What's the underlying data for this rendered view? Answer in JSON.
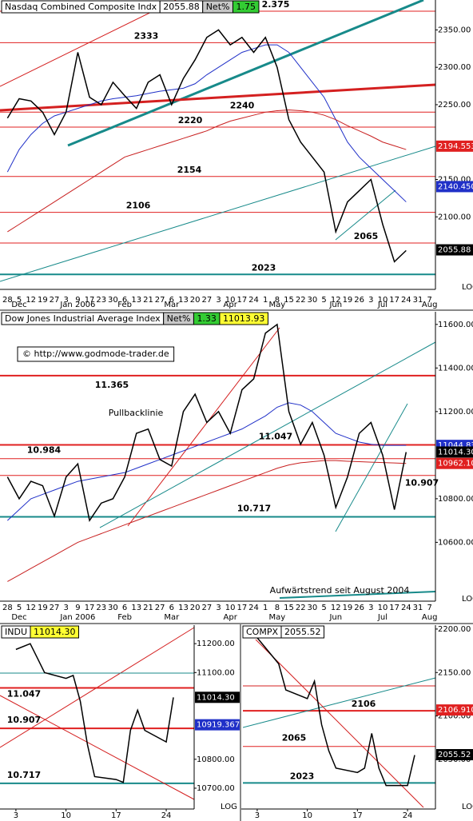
{
  "chart_data": [
    {
      "type": "line",
      "header": [
        {
          "text": "Nasdaq Combined Composite Indx",
          "color": "#ffffff"
        },
        {
          "text": "2055.88",
          "color": "#ffffff"
        },
        {
          "text": "Net%",
          "color": "#c8c8c8"
        },
        {
          "text": "1.75",
          "color": "#33cc33"
        }
      ],
      "categories": [
        "28",
        "5",
        "12",
        "19",
        "27",
        "3",
        "9",
        "17",
        "23",
        "30",
        "6",
        "13",
        "21",
        "27",
        "6",
        "13",
        "20",
        "27",
        "3",
        "10",
        "17",
        "24",
        "1",
        "8",
        "15",
        "22",
        "30",
        "5",
        "12",
        "19",
        "26",
        "3",
        "10",
        "17",
        "24",
        "31",
        "7"
      ],
      "months": [
        null,
        "Dec",
        null,
        null,
        null,
        null,
        "Jan 2006",
        null,
        null,
        null,
        "Feb",
        null,
        null,
        null,
        "Mar",
        null,
        null,
        null,
        null,
        "Apr",
        null,
        null,
        null,
        "May",
        null,
        null,
        null,
        null,
        "Jun",
        null,
        null,
        null,
        "Jul",
        null,
        null,
        null,
        "Aug"
      ],
      "values": [
        2232,
        2258,
        2255,
        2240,
        2210,
        2240,
        2320,
        2260,
        2250,
        2280,
        2262,
        2245,
        2280,
        2290,
        2250,
        2285,
        2310,
        2340,
        2350,
        2330,
        2340,
        2320,
        2340,
        2300,
        2230,
        2200,
        2180,
        2160,
        2080,
        2120,
        2135,
        2150,
        2090,
        2040,
        2055,
        null,
        null
      ],
      "color": "#000000",
      "moving_averages": [
        {
          "color": "#2030c8",
          "values": [
            2160,
            2190,
            2210,
            2225,
            2235,
            2240,
            2245,
            2250,
            2255,
            2258,
            2260,
            2262,
            2265,
            2268,
            2270,
            2272,
            2278,
            2290,
            2300,
            2310,
            2320,
            2325,
            2330,
            2330,
            2320,
            2300,
            2280,
            2260,
            2230,
            2200,
            2180,
            2165,
            2150,
            2135,
            2120,
            null,
            null
          ]
        },
        {
          "color": "#c82020",
          "values": [
            2080,
            2090,
            2100,
            2110,
            2120,
            2130,
            2140,
            2150,
            2160,
            2170,
            2180,
            2185,
            2190,
            2195,
            2200,
            2205,
            2210,
            2215,
            2222,
            2228,
            2232,
            2236,
            2240,
            2242,
            2243,
            2242,
            2240,
            2236,
            2230,
            2222,
            2215,
            2208,
            2200,
            2195,
            2190,
            null,
            null
          ]
        }
      ],
      "ylim": [
        2003,
        2390
      ],
      "yticks": [
        {
          "value": 2100,
          "label": "2100.00"
        },
        {
          "value": 2150,
          "label": "2150.00"
        },
        {
          "value": 2250,
          "label": "2250.00"
        },
        {
          "value": 2300,
          "label": "2300.00"
        },
        {
          "value": 2350,
          "label": "2350.00"
        }
      ],
      "levels": [
        {
          "value": 2375,
          "label": "2.375",
          "color": "#e02020",
          "weight": 1
        },
        {
          "value": 2333,
          "label": "2333",
          "color": "#e02020",
          "weight": 1
        },
        {
          "value": 2240,
          "label": "2240",
          "color": "#e02020",
          "weight": 1
        },
        {
          "value": 2220,
          "label": "2220",
          "color": "#e02020",
          "weight": 1
        },
        {
          "value": 2154,
          "label": "2154",
          "color": "#e02020",
          "weight": 1
        },
        {
          "value": 2106,
          "label": "2106",
          "color": "#e02020",
          "weight": 1
        },
        {
          "value": 2065,
          "label": "2065",
          "color": "#e02020",
          "weight": 1
        },
        {
          "value": 2023,
          "label": "2023",
          "color": "#178a8a",
          "weight": 2
        }
      ],
      "markers": [
        {
          "value": 2194.553,
          "color": "#e02020"
        },
        {
          "value": 2140.45,
          "label": "2140.450",
          "color": "#2030c8"
        },
        {
          "value": 2055.88,
          "color": "#000000"
        }
      ],
      "axis_note": "LOG"
    },
    {
      "type": "line",
      "header": [
        {
          "text": "Dow Jones Industrial Average Index",
          "color": "#ffffff"
        },
        {
          "text": "Net%",
          "color": "#c8c8c8"
        },
        {
          "text": "1.33",
          "color": "#33cc33"
        },
        {
          "text": "11013.93",
          "color": "#ffff33"
        }
      ],
      "categories": [
        "28",
        "5",
        "12",
        "19",
        "27",
        "3",
        "9",
        "17",
        "23",
        "30",
        "6",
        "13",
        "21",
        "27",
        "6",
        "13",
        "20",
        "27",
        "3",
        "10",
        "17",
        "24",
        "1",
        "8",
        "15",
        "22",
        "30",
        "5",
        "12",
        "19",
        "26",
        "3",
        "10",
        "17",
        "24",
        "31",
        "7"
      ],
      "months": [
        null,
        "Dec",
        null,
        null,
        null,
        null,
        "Jan 2006",
        null,
        null,
        null,
        "Feb",
        null,
        null,
        null,
        "Mar",
        null,
        null,
        null,
        null,
        "Apr",
        null,
        null,
        null,
        "May",
        null,
        null,
        null,
        null,
        "Jun",
        null,
        null,
        null,
        "Jul",
        null,
        null,
        null,
        "Aug"
      ],
      "values": [
        10900,
        10800,
        10880,
        10860,
        10720,
        10900,
        10960,
        10700,
        10780,
        10800,
        10900,
        11100,
        11120,
        10980,
        10950,
        11200,
        11280,
        11150,
        11200,
        11100,
        11300,
        11350,
        11560,
        11600,
        11200,
        11050,
        11150,
        11000,
        10760,
        10900,
        11100,
        11150,
        11000,
        10750,
        11014,
        null,
        null
      ],
      "color": "#000000",
      "moving_averages": [
        {
          "color": "#2030c8",
          "values": [
            10700,
            10750,
            10800,
            10820,
            10840,
            10860,
            10880,
            10890,
            10900,
            10910,
            10920,
            10940,
            10960,
            10980,
            11000,
            11020,
            11040,
            11060,
            11080,
            11100,
            11120,
            11150,
            11180,
            11220,
            11240,
            11230,
            11200,
            11150,
            11100,
            11080,
            11060,
            11050,
            11045,
            11045,
            11045,
            null,
            null
          ]
        },
        {
          "color": "#c82020",
          "values": [
            10420,
            10450,
            10480,
            10510,
            10540,
            10570,
            10600,
            10620,
            10640,
            10660,
            10680,
            10700,
            10720,
            10740,
            10760,
            10780,
            10800,
            10820,
            10840,
            10860,
            10880,
            10900,
            10920,
            10940,
            10955,
            10965,
            10970,
            10975,
            10975,
            10972,
            10970,
            10968,
            10966,
            10964,
            10962,
            null,
            null
          ]
        }
      ],
      "ylim": [
        10330,
        11658
      ],
      "yticks": [
        {
          "value": 10600,
          "label": "10600.00"
        },
        {
          "value": 10800,
          "label": "10800.00"
        },
        {
          "value": 11200,
          "label": "11200.00"
        },
        {
          "value": 11400,
          "label": "11400.00"
        },
        {
          "value": 11600,
          "label": "11600.00"
        }
      ],
      "levels": [
        {
          "value": 11365,
          "label": "11.365",
          "color": "#e02020",
          "weight": 2
        },
        {
          "value": 11047,
          "label": "11.047",
          "color": "#e02020",
          "weight": 2
        },
        {
          "value": 10984,
          "label": "10.984",
          "color": "#e02020",
          "weight": 1
        },
        {
          "value": 10907,
          "label": "10.907",
          "color": "#e02020",
          "weight": 1
        },
        {
          "value": 10717,
          "label": "10.717",
          "color": "#178a8a",
          "weight": 2
        }
      ],
      "markers": [
        {
          "value": 11044.83,
          "color": "#2030c8"
        },
        {
          "value": 11014.3,
          "label": "11014.30",
          "color": "#000000"
        },
        {
          "value": 10962.1,
          "label": "10962.10",
          "color": "#e02020"
        }
      ],
      "annotations": [
        "© http://www.godmode-trader.de",
        "Pullbacklinie",
        "Aufwärtstrend seit August 2004"
      ],
      "axis_note": "LOG"
    },
    {
      "type": "line",
      "header": [
        {
          "text": "INDU",
          "color": "#ffffff"
        },
        {
          "text": "11014.30",
          "color": "#ffff33"
        }
      ],
      "x": [
        3,
        5,
        6,
        7,
        10,
        11,
        12,
        13,
        14,
        17,
        18,
        19,
        20,
        21,
        24,
        25
      ],
      "values": [
        11180,
        11200,
        11150,
        11100,
        11080,
        11090,
        11000,
        10850,
        10740,
        10730,
        10720,
        10900,
        10970,
        10900,
        10860,
        11014
      ],
      "color": "#000000",
      "xlim": [
        1,
        27.9
      ],
      "xticks": [
        3,
        10,
        17,
        24
      ],
      "ylim": [
        10628,
        11264
      ],
      "yticks": [
        {
          "value": 10700,
          "label": "10700.00"
        },
        {
          "value": 10800,
          "label": "10800.00"
        },
        {
          "value": 11100,
          "label": "11100.00"
        },
        {
          "value": 11200,
          "label": "11200.00"
        }
      ],
      "levels": [
        {
          "value": 11047,
          "label": "11.047",
          "color": "#e02020",
          "weight": 2
        },
        {
          "value": 10907,
          "label": "10.907",
          "color": "#e02020",
          "weight": 2
        },
        {
          "value": 10717,
          "label": "10.717",
          "color": "#178a8a",
          "weight": 2
        }
      ],
      "markers": [
        {
          "value": 11014.3,
          "label": "11014.30",
          "color": "#000000"
        },
        {
          "value": 10919.367,
          "color": "#2030c8"
        }
      ],
      "axis_note": "LOG"
    },
    {
      "type": "line",
      "header": [
        {
          "text": "COMPX",
          "color": "#ffffff"
        },
        {
          "text": "2055.52",
          "color": "#ffffff"
        }
      ],
      "x": [
        3,
        5,
        6,
        7,
        10,
        11,
        12,
        13,
        14,
        17,
        18,
        19,
        20,
        21,
        24,
        25
      ],
      "values": [
        2190,
        2170,
        2160,
        2130,
        2120,
        2140,
        2090,
        2060,
        2040,
        2035,
        2040,
        2080,
        2040,
        2020,
        2020,
        2055
      ],
      "color": "#000000",
      "xlim": [
        1,
        27.9
      ],
      "xticks": [
        3,
        10,
        17,
        24
      ],
      "ylim": [
        1993,
        2204.5
      ],
      "yticks": [
        {
          "value": 2050,
          "label": "2050.00"
        },
        {
          "value": 2100,
          "label": "2100.00"
        },
        {
          "value": 2150,
          "label": "2150.00"
        },
        {
          "value": 2200,
          "label": "2200.00"
        }
      ],
      "levels": [
        {
          "value": 2106,
          "label": "2106",
          "color": "#e02020",
          "weight": 2
        },
        {
          "value": 2065,
          "label": "2065",
          "color": "#e02020",
          "weight": 1
        },
        {
          "value": 2023,
          "label": "2023",
          "color": "#178a8a",
          "weight": 2
        }
      ],
      "markers": [
        {
          "value": 2106.91,
          "label": "2106.910",
          "color": "#e02020"
        },
        {
          "value": 2055.52,
          "color": "#000000"
        }
      ],
      "axis_note": "LOG"
    }
  ]
}
